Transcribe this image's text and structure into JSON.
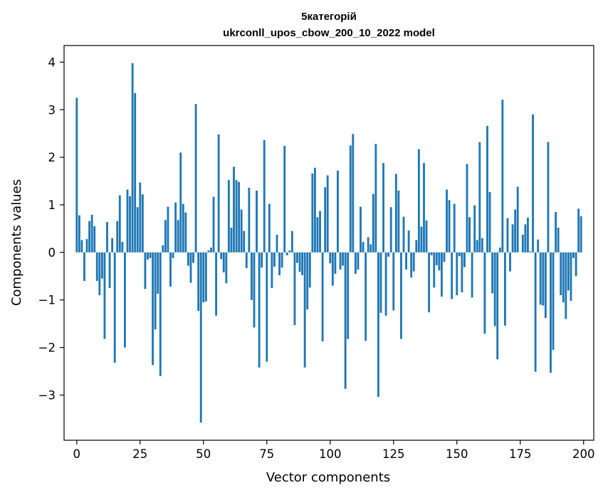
{
  "chart_data": {
    "type": "bar",
    "title": "5категорій",
    "subtitle": "ukrconll_upos_cbow_200_10_2022 model",
    "xlabel": "Vector components",
    "ylabel": "Components values",
    "bar_color": "#1f77b4",
    "xlim": [
      -5,
      204
    ],
    "ylim": [
      -3.95,
      4.35
    ],
    "x_ticks": [
      {
        "value": 0,
        "label": "0"
      },
      {
        "value": 25,
        "label": "25"
      },
      {
        "value": 50,
        "label": "50"
      },
      {
        "value": 75,
        "label": "75"
      },
      {
        "value": 100,
        "label": "100"
      },
      {
        "value": 125,
        "label": "125"
      },
      {
        "value": 150,
        "label": "150"
      },
      {
        "value": 175,
        "label": "175"
      },
      {
        "value": 200,
        "label": "200"
      }
    ],
    "y_ticks": [
      {
        "value": -3,
        "label": "−3"
      },
      {
        "value": -2,
        "label": "−2"
      },
      {
        "value": -1,
        "label": "−1"
      },
      {
        "value": 0,
        "label": "0"
      },
      {
        "value": 1,
        "label": "1"
      },
      {
        "value": 2,
        "label": "2"
      },
      {
        "value": 3,
        "label": "3"
      },
      {
        "value": 4,
        "label": "4"
      }
    ],
    "grid": false,
    "values": [
      3.25,
      0.78,
      0.26,
      -0.6,
      0.28,
      0.66,
      0.79,
      0.55,
      -0.6,
      -0.9,
      -0.55,
      -1.82,
      0.64,
      -0.75,
      0.3,
      -2.32,
      0.66,
      1.2,
      0.22,
      -2.0,
      1.32,
      1.18,
      3.98,
      3.35,
      0.95,
      1.47,
      1.22,
      -0.77,
      -0.15,
      -0.12,
      -2.37,
      -1.62,
      -0.87,
      -2.6,
      0.15,
      0.68,
      0.96,
      -0.72,
      -0.12,
      1.05,
      0.68,
      2.1,
      1.02,
      0.84,
      -0.28,
      -0.64,
      -0.22,
      3.12,
      -1.23,
      -3.58,
      -1.05,
      -1.03,
      0.04,
      0.1,
      1.17,
      -1.33,
      2.48,
      -0.14,
      -0.42,
      -0.65,
      1.52,
      0.52,
      1.8,
      1.52,
      1.48,
      0.9,
      0.45,
      -0.33,
      1.36,
      -1.0,
      -1.58,
      1.3,
      -2.42,
      -0.32,
      2.36,
      -2.3,
      1.02,
      -0.75,
      -0.3,
      0.37,
      -0.48,
      -0.32,
      2.24,
      -0.06,
      0.04,
      0.45,
      -1.53,
      -0.22,
      -0.41,
      -0.48,
      -2.42,
      -1.2,
      -0.74,
      1.66,
      1.78,
      0.74,
      0.87,
      -1.87,
      1.37,
      1.62,
      -0.23,
      -0.7,
      -0.45,
      1.72,
      -0.36,
      -0.28,
      -2.87,
      -1.82,
      2.25,
      2.49,
      -0.45,
      -0.36,
      0.96,
      0.22,
      -1.86,
      0.32,
      0.17,
      1.23,
      2.28,
      -3.04,
      -1.27,
      1.88,
      -1.33,
      -0.09,
      0.95,
      -1.22,
      1.65,
      1.3,
      -1.82,
      0.75,
      -0.36,
      0.46,
      -0.53,
      -0.4,
      0.26,
      2.17,
      0.54,
      1.88,
      0.67,
      -1.26,
      -0.06,
      -0.74,
      -0.27,
      -0.38,
      -0.93,
      -0.2,
      1.32,
      1.1,
      -0.98,
      1.02,
      -0.9,
      -0.08,
      -0.84,
      -0.31,
      1.86,
      0.74,
      -0.95,
      0.99,
      0.26,
      2.32,
      0.3,
      -1.71,
      2.66,
      1.27,
      -0.86,
      -1.55,
      -2.25,
      0.1,
      3.21,
      -1.54,
      0.72,
      -0.4,
      0.59,
      0.9,
      1.38,
      0.0,
      0.37,
      0.59,
      0.73,
      0.02,
      2.9,
      -2.51,
      0.27,
      -1.1,
      -1.12,
      -1.38,
      2.32,
      -2.53,
      -2.05,
      0.85,
      0.52,
      -0.9,
      -1.05,
      -1.4,
      -0.8,
      -1.02,
      -0.12,
      -0.5,
      0.92,
      0.76
    ]
  }
}
